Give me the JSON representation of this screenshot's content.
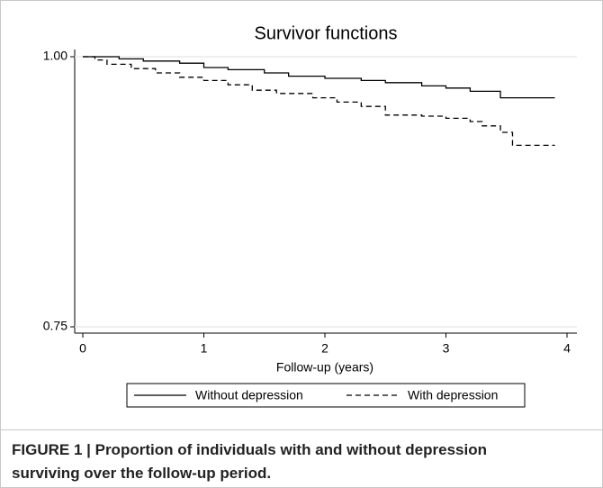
{
  "chart_data": {
    "type": "line",
    "step": true,
    "title": "Survivor functions",
    "x_label": "Follow-up (years)",
    "series": [
      {
        "name": "Without depression",
        "color": "#000000",
        "style": "solid",
        "x": [
          0,
          0.3,
          0.5,
          0.8,
          1.0,
          1.2,
          1.5,
          1.7,
          2.0,
          2.3,
          2.5,
          2.8,
          3.0,
          3.2,
          3.45,
          3.9
        ],
        "values": [
          1.0,
          0.998,
          0.996,
          0.994,
          0.99,
          0.988,
          0.985,
          0.982,
          0.98,
          0.978,
          0.976,
          0.973,
          0.971,
          0.968,
          0.962,
          0.962
        ]
      },
      {
        "name": "With depression",
        "color": "#000000",
        "style": "dashed",
        "x": [
          0,
          0.1,
          0.2,
          0.4,
          0.6,
          0.8,
          1.0,
          1.2,
          1.4,
          1.6,
          1.9,
          2.1,
          2.3,
          2.5,
          2.8,
          3.0,
          3.2,
          3.3,
          3.45,
          3.55,
          3.9
        ],
        "values": [
          1.0,
          0.997,
          0.993,
          0.989,
          0.985,
          0.981,
          0.978,
          0.974,
          0.969,
          0.966,
          0.962,
          0.958,
          0.954,
          0.946,
          0.945,
          0.943,
          0.94,
          0.936,
          0.93,
          0.918,
          0.918
        ]
      }
    ],
    "xlim": [
      0,
      4
    ],
    "xticks": [
      0,
      1,
      2,
      3,
      4
    ],
    "ylim": [
      0.75,
      1.0
    ],
    "yticks": [
      {
        "value": 1.0,
        "label": "1.00"
      },
      {
        "value": 0.75,
        "label": "0.75"
      }
    ],
    "grid": true,
    "legend": "bottom"
  },
  "caption": "FIGURE 1 | Proportion of individuals with and without depression surviving over the follow-up period."
}
